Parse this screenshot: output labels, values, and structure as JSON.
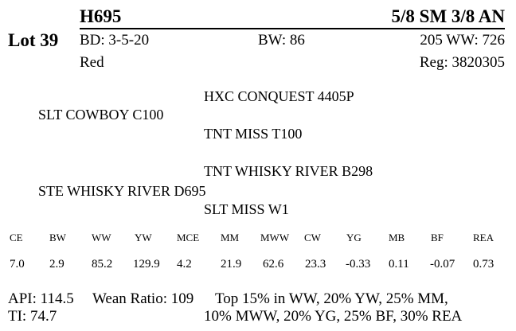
{
  "lot": "Lot 39",
  "animal": {
    "id": "H695",
    "breed": "5/8 SM 3/8 AN",
    "birth_date": "BD: 3-5-20",
    "birth_weight": "BW: 86",
    "wean_weight": "205 WW: 726",
    "color": "Red",
    "registration": "Reg: 3820305"
  },
  "pedigree": {
    "sire_sire": "HXC CONQUEST 4405P",
    "sire": "SLT COWBOY C100",
    "sire_dam": "TNT MISS T100",
    "dam_sire": "TNT WHISKY RIVER B298",
    "dam": "STE WHISKY RIVER D695",
    "dam_dam": "SLT MISS W1"
  },
  "epd": {
    "headers": [
      "CE",
      "BW",
      "WW",
      "YW",
      "MCE",
      "MM",
      "MWW",
      "CW",
      "YG",
      "MB",
      "BF",
      "REA"
    ],
    "values": [
      "7.0",
      "2.9",
      "85.2",
      "129.9",
      "4.2",
      "21.9",
      "62.6",
      "23.3",
      "-0.33",
      "0.11",
      "-0.07",
      "0.73"
    ]
  },
  "indexes": {
    "api": "API: 114.5",
    "wean_ratio": "Wean Ratio: 109",
    "ti": "TI: 74.7",
    "top_line1": "Top 15% in WW,  20% YW,  25% MM,",
    "top_line2": "10% MWW,  20% YG,  25% BF,  30% REA"
  }
}
